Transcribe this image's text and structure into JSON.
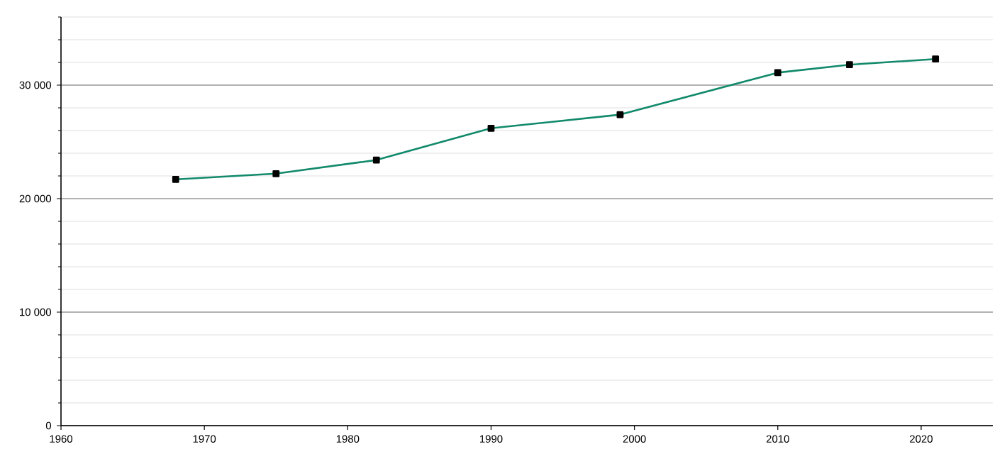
{
  "chart_data": {
    "type": "line",
    "x": [
      1968,
      1975,
      1982,
      1990,
      1999,
      2010,
      2015,
      2021
    ],
    "series": [
      {
        "color": "#11896a",
        "values": [
          21700,
          22200,
          23400,
          26200,
          27400,
          31100,
          31800,
          32300
        ]
      }
    ],
    "xlim": [
      1960,
      2025
    ],
    "xticks": [
      1960,
      1970,
      1980,
      1990,
      2000,
      2010,
      2020
    ],
    "ylim": [
      0,
      36000
    ],
    "yticks": [
      {
        "value": 0,
        "label": "0"
      },
      {
        "value": 2000,
        "label": null
      },
      {
        "value": 4000,
        "label": null
      },
      {
        "value": 6000,
        "label": null
      },
      {
        "value": 8000,
        "label": null
      },
      {
        "value": 10000,
        "label": "10 000"
      },
      {
        "value": 12000,
        "label": null
      },
      {
        "value": 14000,
        "label": null
      },
      {
        "value": 16000,
        "label": null
      },
      {
        "value": 18000,
        "label": null
      },
      {
        "value": 20000,
        "label": "20 000"
      },
      {
        "value": 22000,
        "label": null
      },
      {
        "value": 24000,
        "label": null
      },
      {
        "value": 26000,
        "label": null
      },
      {
        "value": 28000,
        "label": null
      },
      {
        "value": 30000,
        "label": "30 000"
      },
      {
        "value": 32000,
        "label": null
      },
      {
        "value": 34000,
        "label": null
      },
      {
        "value": 36000,
        "label": null
      }
    ],
    "grid": "y",
    "marker": "square",
    "line_style": "solid"
  }
}
